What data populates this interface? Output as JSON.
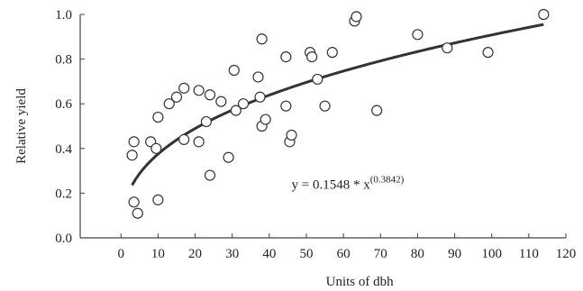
{
  "chart_data": {
    "type": "scatter",
    "title": "",
    "xlabel": "Units of dbh",
    "ylabel": "Relative yield",
    "xlim": [
      -11,
      120
    ],
    "ylim": [
      0,
      1.0
    ],
    "xticks": [
      0,
      10,
      20,
      30,
      40,
      50,
      60,
      70,
      80,
      90,
      100,
      110,
      120
    ],
    "yticks": [
      0.0,
      0.2,
      0.4,
      0.6,
      0.8,
      1.0
    ],
    "ytick_labels": [
      "0.0",
      "0.2",
      "0.4",
      "0.6",
      "0.8",
      "1.0"
    ],
    "grid": false,
    "points": [
      {
        "x": 3,
        "y": 0.37
      },
      {
        "x": 3.5,
        "y": 0.43
      },
      {
        "x": 3.5,
        "y": 0.16
      },
      {
        "x": 4.5,
        "y": 0.11
      },
      {
        "x": 8,
        "y": 0.43
      },
      {
        "x": 9.5,
        "y": 0.4
      },
      {
        "x": 10,
        "y": 0.54
      },
      {
        "x": 10,
        "y": 0.17
      },
      {
        "x": 13,
        "y": 0.6
      },
      {
        "x": 15,
        "y": 0.63
      },
      {
        "x": 17,
        "y": 0.67
      },
      {
        "x": 17,
        "y": 0.44
      },
      {
        "x": 21,
        "y": 0.66
      },
      {
        "x": 21,
        "y": 0.43
      },
      {
        "x": 23,
        "y": 0.52
      },
      {
        "x": 24,
        "y": 0.64
      },
      {
        "x": 24,
        "y": 0.28
      },
      {
        "x": 27,
        "y": 0.61
      },
      {
        "x": 29,
        "y": 0.36
      },
      {
        "x": 30.5,
        "y": 0.75
      },
      {
        "x": 31,
        "y": 0.57
      },
      {
        "x": 33,
        "y": 0.6
      },
      {
        "x": 37,
        "y": 0.72
      },
      {
        "x": 37.5,
        "y": 0.63
      },
      {
        "x": 38,
        "y": 0.89
      },
      {
        "x": 38,
        "y": 0.5
      },
      {
        "x": 39,
        "y": 0.53
      },
      {
        "x": 44.5,
        "y": 0.81
      },
      {
        "x": 44.5,
        "y": 0.59
      },
      {
        "x": 45.5,
        "y": 0.43
      },
      {
        "x": 46,
        "y": 0.46
      },
      {
        "x": 51,
        "y": 0.83
      },
      {
        "x": 51.5,
        "y": 0.81
      },
      {
        "x": 53,
        "y": 0.71
      },
      {
        "x": 55,
        "y": 0.59
      },
      {
        "x": 57,
        "y": 0.83
      },
      {
        "x": 63,
        "y": 0.97
      },
      {
        "x": 63.5,
        "y": 0.99
      },
      {
        "x": 69,
        "y": 0.57
      },
      {
        "x": 80,
        "y": 0.91
      },
      {
        "x": 88,
        "y": 0.85
      },
      {
        "x": 99,
        "y": 0.83
      },
      {
        "x": 114,
        "y": 1.0
      }
    ],
    "fit": {
      "equation_text": "y = 0.1548 * x",
      "exponent_text": "(0.3842)",
      "a": 0.1548,
      "b": 0.3842,
      "x_range": [
        3,
        114
      ]
    },
    "legend": "none",
    "marker": "open-circle",
    "colors": {
      "marker_stroke": "#333333",
      "fit_line": "#333333",
      "axis": "#444444"
    }
  }
}
